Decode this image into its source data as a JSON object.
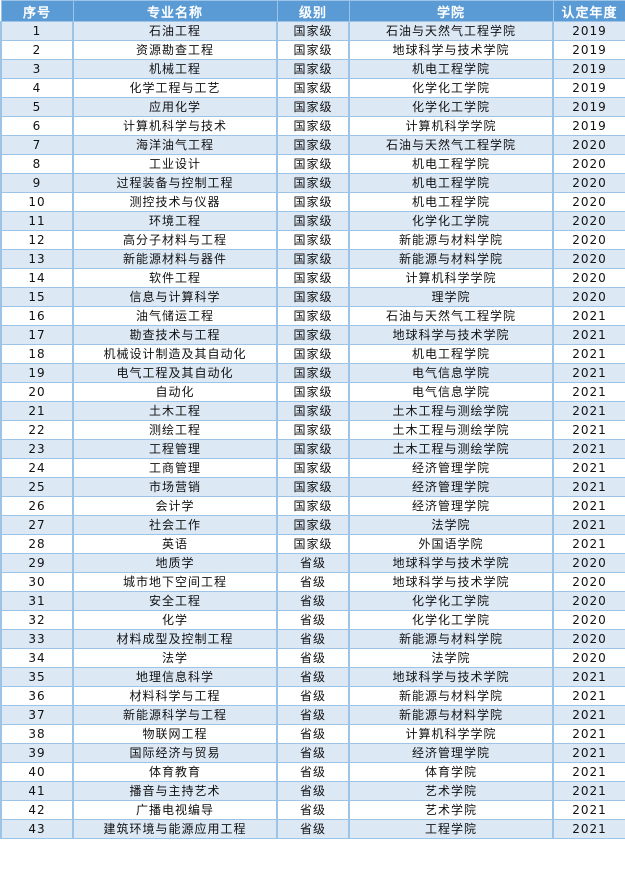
{
  "header": {
    "index": "序号",
    "major": "专业名称",
    "level": "级别",
    "college": "学院",
    "year": "认定年度"
  },
  "rows": [
    [
      "1",
      "石油工程",
      "国家级",
      "石油与天然气工程学院",
      "2019"
    ],
    [
      "2",
      "资源勘查工程",
      "国家级",
      "地球科学与技术学院",
      "2019"
    ],
    [
      "3",
      "机械工程",
      "国家级",
      "机电工程学院",
      "2019"
    ],
    [
      "4",
      "化学工程与工艺",
      "国家级",
      "化学化工学院",
      "2019"
    ],
    [
      "5",
      "应用化学",
      "国家级",
      "化学化工学院",
      "2019"
    ],
    [
      "6",
      "计算机科学与技术",
      "国家级",
      "计算机科学学院",
      "2019"
    ],
    [
      "7",
      "海洋油气工程",
      "国家级",
      "石油与天然气工程学院",
      "2020"
    ],
    [
      "8",
      "工业设计",
      "国家级",
      "机电工程学院",
      "2020"
    ],
    [
      "9",
      "过程装备与控制工程",
      "国家级",
      "机电工程学院",
      "2020"
    ],
    [
      "10",
      "测控技术与仪器",
      "国家级",
      "机电工程学院",
      "2020"
    ],
    [
      "11",
      "环境工程",
      "国家级",
      "化学化工学院",
      "2020"
    ],
    [
      "12",
      "高分子材料与工程",
      "国家级",
      "新能源与材料学院",
      "2020"
    ],
    [
      "13",
      "新能源材料与器件",
      "国家级",
      "新能源与材料学院",
      "2020"
    ],
    [
      "14",
      "软件工程",
      "国家级",
      "计算机科学学院",
      "2020"
    ],
    [
      "15",
      "信息与计算科学",
      "国家级",
      "理学院",
      "2020"
    ],
    [
      "16",
      "油气储运工程",
      "国家级",
      "石油与天然气工程学院",
      "2021"
    ],
    [
      "17",
      "勘查技术与工程",
      "国家级",
      "地球科学与技术学院",
      "2021"
    ],
    [
      "18",
      "机械设计制造及其自动化",
      "国家级",
      "机电工程学院",
      "2021"
    ],
    [
      "19",
      "电气工程及其自动化",
      "国家级",
      "电气信息学院",
      "2021"
    ],
    [
      "20",
      "自动化",
      "国家级",
      "电气信息学院",
      "2021"
    ],
    [
      "21",
      "土木工程",
      "国家级",
      "土木工程与测绘学院",
      "2021"
    ],
    [
      "22",
      "测绘工程",
      "国家级",
      "土木工程与测绘学院",
      "2021"
    ],
    [
      "23",
      "工程管理",
      "国家级",
      "土木工程与测绘学院",
      "2021"
    ],
    [
      "24",
      "工商管理",
      "国家级",
      "经济管理学院",
      "2021"
    ],
    [
      "25",
      "市场营销",
      "国家级",
      "经济管理学院",
      "2021"
    ],
    [
      "26",
      "会计学",
      "国家级",
      "经济管理学院",
      "2021"
    ],
    [
      "27",
      "社会工作",
      "国家级",
      "法学院",
      "2021"
    ],
    [
      "28",
      "英语",
      "国家级",
      "外国语学院",
      "2021"
    ],
    [
      "29",
      "地质学",
      "省级",
      "地球科学与技术学院",
      "2020"
    ],
    [
      "30",
      "城市地下空间工程",
      "省级",
      "地球科学与技术学院",
      "2020"
    ],
    [
      "31",
      "安全工程",
      "省级",
      "化学化工学院",
      "2020"
    ],
    [
      "32",
      "化学",
      "省级",
      "化学化工学院",
      "2020"
    ],
    [
      "33",
      "材料成型及控制工程",
      "省级",
      "新能源与材料学院",
      "2020"
    ],
    [
      "34",
      "法学",
      "省级",
      "法学院",
      "2020"
    ],
    [
      "35",
      "地理信息科学",
      "省级",
      "地球科学与技术学院",
      "2021"
    ],
    [
      "36",
      "材料科学与工程",
      "省级",
      "新能源与材料学院",
      "2021"
    ],
    [
      "37",
      "新能源科学与工程",
      "省级",
      "新能源与材料学院",
      "2021"
    ],
    [
      "38",
      "物联网工程",
      "省级",
      "计算机科学学院",
      "2021"
    ],
    [
      "39",
      "国际经济与贸易",
      "省级",
      "经济管理学院",
      "2021"
    ],
    [
      "40",
      "体育教育",
      "省级",
      "体育学院",
      "2021"
    ],
    [
      "41",
      "播音与主持艺术",
      "省级",
      "艺术学院",
      "2021"
    ],
    [
      "42",
      "广播电视编导",
      "省级",
      "艺术学院",
      "2021"
    ],
    [
      "43",
      "建筑环境与能源应用工程",
      "省级",
      "工程学院",
      "2021"
    ]
  ],
  "colors": {
    "header_bg": "#5b9bd5",
    "odd_row_bg": "#dde8f5",
    "even_row_bg": "#ffffff",
    "border": "#9dc3e6"
  }
}
